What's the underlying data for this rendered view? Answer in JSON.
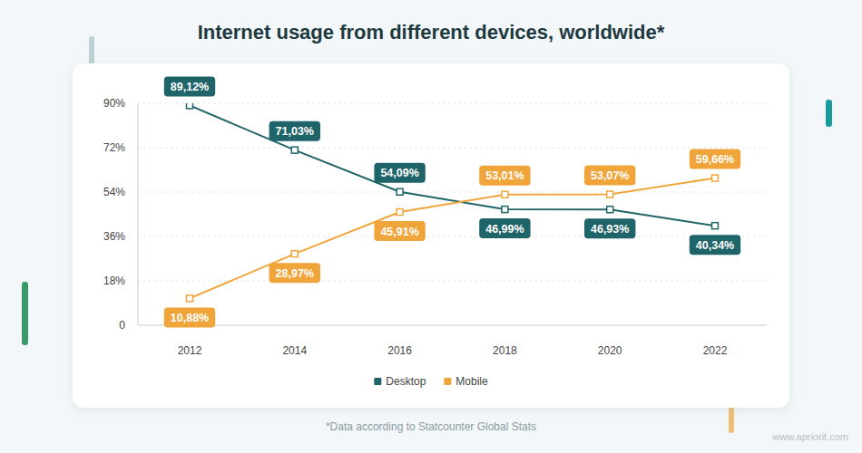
{
  "chart_data": {
    "type": "line",
    "title": "Internet usage from different devices, worldwide*",
    "annotations": [
      "*Data according to Statcounter Global Stats",
      "www.apriorit.com"
    ],
    "categories": [
      "2012",
      "2014",
      "2016",
      "2018",
      "2020",
      "2022"
    ],
    "series": [
      {
        "name": "Desktop",
        "color": "#1f6468",
        "values": [
          89.12,
          71.03,
          54.09,
          46.99,
          46.93,
          40.34
        ],
        "value_labels": [
          "89,12%",
          "71,03%",
          "54,09%",
          "46,99%",
          "46,93%",
          "40,34%"
        ]
      },
      {
        "name": "Mobile",
        "color": "#f0a53a",
        "values": [
          10.88,
          28.97,
          45.91,
          53.01,
          53.07,
          59.66
        ],
        "value_labels": [
          "10,88%",
          "28,97%",
          "45,91%",
          "53,01%",
          "53,07%",
          "59,66%"
        ]
      }
    ],
    "ylim": [
      0,
      90
    ],
    "yticks": [
      0,
      {
        "value": 18,
        "label": "18%"
      },
      {
        "value": 36,
        "label": "36%"
      },
      {
        "value": 54,
        "label": "54%"
      },
      {
        "value": 72,
        "label": "72%"
      },
      {
        "value": 90,
        "label": "90%"
      }
    ],
    "grid": true,
    "legend": "bottom",
    "data_labels": true,
    "marker": "square",
    "line_style": "solid"
  }
}
